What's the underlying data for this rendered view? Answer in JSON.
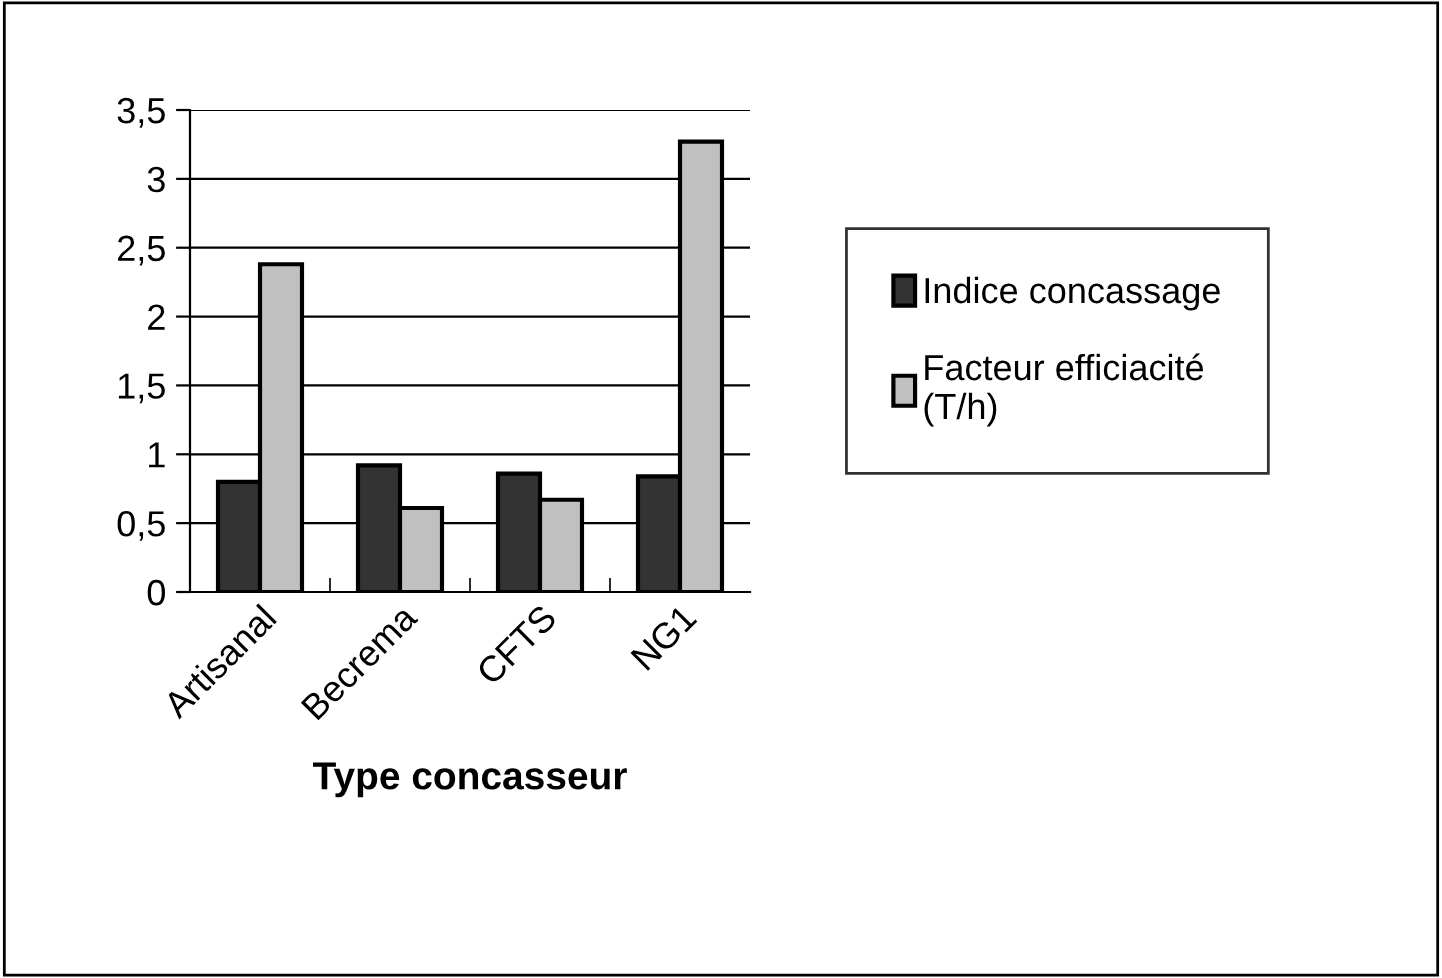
{
  "chart_data": {
    "type": "bar",
    "xlabel": "Type concasseur",
    "categories": [
      "Artisanal",
      "Becrema",
      "CFTS",
      "NG1"
    ],
    "series": [
      {
        "name": "Indice concassage",
        "color": "#333333",
        "values": [
          0.8,
          0.92,
          0.86,
          0.84
        ]
      },
      {
        "name": "Facteur efficiacité (T/h)",
        "color": "#c0c0c0",
        "values": [
          2.38,
          0.61,
          0.67,
          3.27
        ]
      }
    ],
    "ylim": [
      0,
      3.5
    ],
    "yticks": [
      0,
      {
        "value": 0.5,
        "label": "0,5"
      },
      1,
      {
        "value": 1.5,
        "label": "1,5"
      },
      2,
      {
        "value": 2.5,
        "label": "2,5"
      },
      3,
      {
        "value": 3.5,
        "label": "3,5"
      }
    ],
    "grid": "y",
    "legend": "right"
  }
}
